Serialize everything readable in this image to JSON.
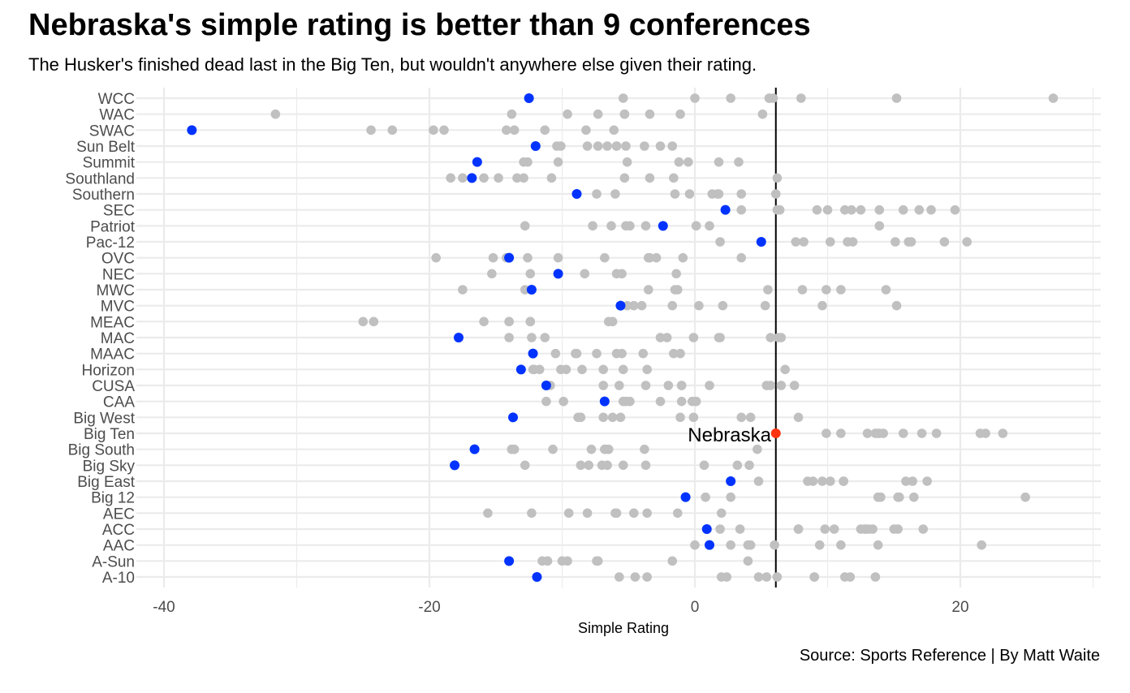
{
  "title": "Nebraska's simple rating is better than 9 conferences",
  "subtitle": "The Husker's finished dead last in the Big Ten, but wouldn't anywhere else given their rating.",
  "caption": "Source: Sports Reference | By Matt Waite",
  "chart_data": {
    "type": "scatter",
    "xlabel": "Simple Rating",
    "ylabel": "",
    "xlim": [
      -42,
      30
    ],
    "x_ticks": [
      -40,
      -20,
      0,
      20
    ],
    "x_tick_labels": [
      "-40",
      "-20",
      "0",
      "20"
    ],
    "grid": true,
    "legend": "none",
    "colors": {
      "team": "#c0c0c0",
      "worst_in_conference": "#0033ff",
      "nebraska": "#ff3311",
      "reference_line": "#000000"
    },
    "reference_line": {
      "x": 6.1
    },
    "highlight": {
      "label": "Nebraska",
      "conference": "Big Ten",
      "x": 6.1
    },
    "conferences": [
      {
        "name": "WCC",
        "lowest": -12.5,
        "others": [
          -5.4,
          0,
          2.7,
          5.6,
          5.6,
          5.9,
          8,
          15.2,
          27
        ]
      },
      {
        "name": "WAC",
        "lowest": null,
        "others": [
          -31.6,
          -13.8,
          -9.6,
          -7.3,
          -5.3,
          -5.3,
          -3.4,
          -1.1,
          5.1
        ]
      },
      {
        "name": "SWAC",
        "lowest": -37.9,
        "others": [
          -24.4,
          -22.8,
          -19.7,
          -18.9,
          -14.2,
          -13.6,
          -11.3,
          -8.2,
          -6.1
        ]
      },
      {
        "name": "Sun Belt",
        "lowest": -12,
        "others": [
          -10.4,
          -10.1,
          -8.1,
          -7.3,
          -6.6,
          -5.9,
          -5.9,
          -5.2,
          -3.8,
          -2.6,
          -1.7
        ]
      },
      {
        "name": "Summit",
        "lowest": -16.4,
        "others": [
          -12.9,
          -12.6,
          -10.3,
          -5.1,
          -1.2,
          -0.5,
          1.8,
          3.3
        ]
      },
      {
        "name": "Southland",
        "lowest": -16.8,
        "others": [
          -18.4,
          -17.5,
          -16.8,
          -15.9,
          -14.8,
          -13.4,
          -12.9,
          -10.8,
          -5.3,
          -3.4,
          -1.6,
          6.2
        ]
      },
      {
        "name": "Southern",
        "lowest": -8.9,
        "others": [
          -7.4,
          -6,
          -1.5,
          -0.4,
          1.3,
          1.8,
          1.7,
          3.5,
          6.1
        ]
      },
      {
        "name": "SEC",
        "lowest": 2.3,
        "others": [
          3.5,
          6.2,
          6.4,
          9.2,
          10,
          11.3,
          11.8,
          12.5,
          13.9,
          15.7,
          16.9,
          17.8,
          19.6
        ]
      },
      {
        "name": "Patriot",
        "lowest": -2.4,
        "others": [
          -12.8,
          -7.7,
          -6.3,
          -5.2,
          -4.9,
          -3.7,
          0.1,
          1.1,
          13.9
        ]
      },
      {
        "name": "Pac-12",
        "lowest": 5,
        "others": [
          1.9,
          7.6,
          8.2,
          10.2,
          11.5,
          11.9,
          15.1,
          16.1,
          16.3,
          18.8,
          20.5
        ]
      },
      {
        "name": "OVC",
        "lowest": -14,
        "others": [
          -19.5,
          -15.2,
          -14.2,
          -12.6,
          -10.3,
          -6.8,
          -3.4,
          -3.5,
          -2.9,
          -0.9,
          3.5
        ]
      },
      {
        "name": "NEC",
        "lowest": -10.3,
        "others": [
          -15.3,
          -12.4,
          -10.3,
          -10.3,
          -8.3,
          -5.9,
          -5.5,
          -1.4
        ]
      },
      {
        "name": "MWC",
        "lowest": -12.3,
        "others": [
          -17.5,
          -12.8,
          -3.5,
          -1.5,
          -1.3,
          5.5,
          8.1,
          9.9,
          11,
          14.4
        ]
      },
      {
        "name": "MVC",
        "lowest": -5.6,
        "others": [
          -5.1,
          -4.6,
          -4,
          -1.7,
          0.3,
          2.1,
          5.3,
          9.6,
          15.2
        ]
      },
      {
        "name": "MEAC",
        "lowest": null,
        "others": [
          -25,
          -24.2,
          -15.9,
          -14,
          -14,
          -12.4,
          -12.4,
          -6.5,
          -6.2
        ]
      },
      {
        "name": "MAC",
        "lowest": -17.8,
        "others": [
          -14,
          -12.3,
          -11.3,
          -2.6,
          -2.1,
          -0.1,
          1.8,
          1.9,
          5.7,
          6.3,
          6.5
        ]
      },
      {
        "name": "MAAC",
        "lowest": -12.2,
        "others": [
          -12.2,
          -10.5,
          -9,
          -8.9,
          -7.4,
          -5.9,
          -5.5,
          -3.9,
          -1.6,
          -1.1
        ]
      },
      {
        "name": "Horizon",
        "lowest": -13.1,
        "others": [
          -12.2,
          -12.1,
          -11.7,
          -10.1,
          -9.7,
          -8.5,
          -6.9,
          -5.4,
          -3.6,
          6.8
        ]
      },
      {
        "name": "CUSA",
        "lowest": -11.2,
        "others": [
          -10.9,
          -6.9,
          -5.7,
          -3.7,
          -2,
          -1,
          -1,
          1.1,
          5.4,
          5.7,
          6.5,
          7.5
        ]
      },
      {
        "name": "CAA",
        "lowest": -6.8,
        "others": [
          -11.2,
          -9.9,
          -5.4,
          -5.2,
          -4.9,
          -2.6,
          -1,
          -0.2,
          0.1
        ]
      },
      {
        "name": "Big West",
        "lowest": -13.7,
        "others": [
          -8.8,
          -8.6,
          -6.9,
          -6.2,
          -5.6,
          -1.1,
          -0.1,
          3.5,
          4.2,
          7.8
        ]
      },
      {
        "name": "Big Ten",
        "lowest": null,
        "others": [
          9.9,
          11,
          13,
          13.6,
          13.9,
          13.8,
          14.2,
          15.7,
          17.1,
          18.2,
          21.5,
          21.9,
          23.2
        ]
      },
      {
        "name": "Big South",
        "lowest": -16.6,
        "others": [
          -13.8,
          -13.8,
          -13.6,
          -10.7,
          -7.8,
          -6.8,
          -6.7,
          -6.5,
          -3.8,
          4.7
        ]
      },
      {
        "name": "Big Sky",
        "lowest": -18.1,
        "others": [
          -12.8,
          -8.6,
          -8,
          -7,
          -6.6,
          -5.4,
          -3.7,
          0.7,
          3.2,
          4.1
        ]
      },
      {
        "name": "Big East",
        "lowest": 2.7,
        "others": [
          4.8,
          8.5,
          8.9,
          9.6,
          10.2,
          11.2,
          11.2,
          15.9,
          16.4,
          17.5
        ]
      },
      {
        "name": "Big 12",
        "lowest": -0.7,
        "others": [
          0.8,
          2.7,
          13.8,
          14,
          15.3,
          15.4,
          16.5,
          24.9
        ]
      },
      {
        "name": "AEC",
        "lowest": null,
        "others": [
          -15.6,
          -12.3,
          -9.5,
          -8.1,
          -6,
          -5.9,
          -4.6,
          -3.6,
          -1.3,
          2
        ]
      },
      {
        "name": "ACC",
        "lowest": 0.9,
        "others": [
          1.9,
          3.4,
          7.8,
          7.8,
          9.8,
          10.5,
          12.5,
          12.8,
          13.1,
          12.9,
          13.4,
          15,
          15.3,
          17.2
        ]
      },
      {
        "name": "AAC",
        "lowest": 1.1,
        "others": [
          0,
          1.1,
          2.7,
          4,
          4.2,
          6,
          9.4,
          11,
          13.8,
          21.6
        ]
      },
      {
        "name": "A-Sun",
        "lowest": -14,
        "others": [
          -11.5,
          -11.1,
          -10,
          -9.6,
          -7.3,
          -7.4,
          -1.7,
          4
        ]
      },
      {
        "name": "A-10",
        "lowest": -11.9,
        "others": [
          -5.7,
          -4.5,
          -3.6,
          2,
          2.4,
          4.8,
          5.4,
          6.2,
          9,
          9,
          11.3,
          11.7,
          13.6
        ]
      }
    ]
  }
}
